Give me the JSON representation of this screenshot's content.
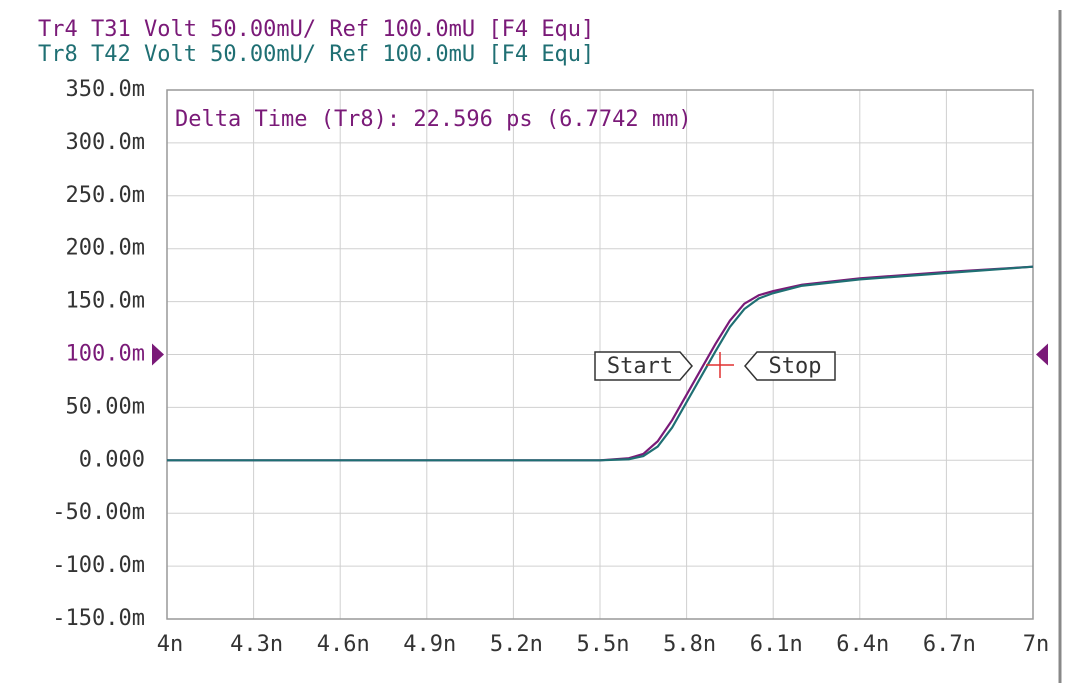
{
  "chart_data": {
    "type": "line",
    "annotation": "Delta Time (Tr8):  22.596 ps (6.7742 mm)",
    "markers": [
      "Start",
      "Stop"
    ],
    "reference": 0.1,
    "reference_color": "#7a1a78",
    "series": [
      {
        "name": "Tr4 T31 Volt 50.00mU/ Ref 100.0mU [F4 Equ]",
        "color": "#7a1a78",
        "x": [
          4e-09,
          5.5e-09,
          5.6e-09,
          5.65e-09,
          5.7e-09,
          5.75e-09,
          5.8e-09,
          5.85e-09,
          5.9e-09,
          5.95e-09,
          6e-09,
          6.05e-09,
          6.1e-09,
          6.2e-09,
          6.4e-09,
          6.7e-09,
          7e-09
        ],
        "values": [
          0,
          0,
          0.002,
          0.006,
          0.018,
          0.038,
          0.062,
          0.086,
          0.11,
          0.132,
          0.148,
          0.156,
          0.16,
          0.166,
          0.172,
          0.178,
          0.183
        ]
      },
      {
        "name": "Tr8 T42 Volt 50.00mU/ Ref 100.0mU [F4 Equ]",
        "color": "#1f6f73",
        "x": [
          4e-09,
          5.5e-09,
          5.6e-09,
          5.65e-09,
          5.7e-09,
          5.75e-09,
          5.8e-09,
          5.85e-09,
          5.9e-09,
          5.95e-09,
          6e-09,
          6.05e-09,
          6.1e-09,
          6.2e-09,
          6.4e-09,
          6.7e-09,
          7e-09
        ],
        "values": [
          0,
          0,
          0.001,
          0.004,
          0.013,
          0.031,
          0.055,
          0.079,
          0.103,
          0.126,
          0.143,
          0.153,
          0.158,
          0.165,
          0.171,
          0.177,
          0.183
        ]
      }
    ],
    "xlim": [
      4e-09,
      7e-09
    ],
    "xticks": [
      {
        "value": 4e-09,
        "label": "4n"
      },
      {
        "value": 4.3e-09,
        "label": "4.3n"
      },
      {
        "value": 4.6e-09,
        "label": "4.6n"
      },
      {
        "value": 4.9e-09,
        "label": "4.9n"
      },
      {
        "value": 5.2e-09,
        "label": "5.2n"
      },
      {
        "value": 5.5e-09,
        "label": "5.5n"
      },
      {
        "value": 5.8e-09,
        "label": "5.8n"
      },
      {
        "value": 6.1e-09,
        "label": "6.1n"
      },
      {
        "value": 6.4e-09,
        "label": "6.4n"
      },
      {
        "value": 6.7e-09,
        "label": "6.7n"
      },
      {
        "value": 7e-09,
        "label": "7n"
      }
    ],
    "ylim": [
      -0.15,
      0.35
    ],
    "yticks": [
      {
        "value": 0.35,
        "label": "350.0m"
      },
      {
        "value": 0.3,
        "label": "300.0m"
      },
      {
        "value": 0.25,
        "label": "250.0m"
      },
      {
        "value": 0.2,
        "label": "200.0m"
      },
      {
        "value": 0.15,
        "label": "150.0m"
      },
      {
        "value": 0.1,
        "label": "100.0m"
      },
      {
        "value": 0.05,
        "label": "50.00m"
      },
      {
        "value": 0,
        "label": "0.000"
      },
      {
        "value": -0.05,
        "label": "-50.00m"
      },
      {
        "value": -0.1,
        "label": "-100.0m"
      },
      {
        "value": -0.15,
        "label": "-150.0m"
      }
    ],
    "grid": true
  }
}
